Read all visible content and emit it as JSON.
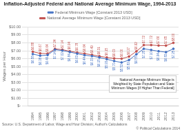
{
  "chart_data": {
    "type": "line",
    "title": "Inflation-Adjusted Federal and National Average Minimum Wage, 1994-2013",
    "ylabel": "Wages per Hour",
    "x": [
      1994,
      1995,
      1996,
      1997,
      1998,
      1999,
      2000,
      2001,
      2002,
      2003,
      2004,
      2005,
      2006,
      2007,
      2008,
      2009,
      2010,
      2011,
      2012,
      2013
    ],
    "xlim": [
      1993.3,
      2013.7
    ],
    "xticks": [
      1994,
      1995,
      1996,
      1997,
      1998,
      1999,
      2000,
      2001,
      2002,
      2003,
      2004,
      2005,
      2006,
      2007,
      2008,
      2009,
      2010,
      2011,
      2012,
      2013
    ],
    "ylim": [
      0,
      10
    ],
    "yticks": [
      {
        "value": 0,
        "label": "$-"
      },
      {
        "value": 1.0,
        "label": "$1.00"
      },
      {
        "value": 2.0,
        "label": "$2.00"
      },
      {
        "value": 3.0,
        "label": "$3.00"
      },
      {
        "value": 4.0,
        "label": "$4.00"
      },
      {
        "value": 5.0,
        "label": "$5.00"
      },
      {
        "value": 6.0,
        "label": "$6.00"
      },
      {
        "value": 7.0,
        "label": "$7.00"
      },
      {
        "value": 8.0,
        "label": "$8.00"
      },
      {
        "value": 9.0,
        "label": "$9.00"
      },
      {
        "value": 10.0,
        "label": "$10.00"
      }
    ],
    "series": [
      {
        "name": "Federal Minimum Wage [Constant 2013 USD]",
        "color": "#4472C4",
        "marker": "circle",
        "values": [
          6.58,
          6.38,
          6.46,
          7.14,
          7.02,
          6.84,
          6.63,
          6.44,
          6.33,
          6.15,
          5.93,
          5.7,
          5.52,
          5.82,
          6.55,
          7.25,
          7.1,
          6.94,
          6.82,
          7.25
        ],
        "value_labels": [
          "$6.58",
          "$6.38",
          "$6.46",
          "$7.14",
          "$7.02",
          "$6.84",
          "$6.63",
          "$6.44",
          "$6.33",
          "$6.15",
          "$5.93",
          "$5.70",
          "$5.52",
          "$5.82",
          "$6.55",
          "$7.25",
          "$7.10",
          "$6.94",
          "$6.82",
          "$7.25"
        ]
      },
      {
        "name": "National Average Minimum Wage [Constant 2013 USD]",
        "color": "#C0504D",
        "marker": "circle",
        "values": [
          6.88,
          6.67,
          6.64,
          7.24,
          7.14,
          6.94,
          6.78,
          6.64,
          6.49,
          6.31,
          6.15,
          6.03,
          6.0,
          6.27,
          6.92,
          7.72,
          7.72,
          7.66,
          7.65,
          8.0
        ],
        "value_labels": [
          "$6.88",
          "$6.67",
          "$6.64",
          "$7.24",
          "$7.14",
          "$6.94",
          "$6.78",
          "$6.64",
          "$6.49",
          "$6.31",
          "$6.15",
          "$6.03",
          "$6.00",
          "$6.27",
          "$6.92",
          "$7.72",
          "$7.72",
          "$7.66",
          "$7.65",
          "$8.00"
        ]
      }
    ],
    "data_labels": true,
    "grid": true,
    "legend": "top",
    "annotation": "National Average Minimum Wage is\nWeighted by State Population and State\nMinimum Wages [If Higher Than Federal]",
    "source": "Source: U.S. Department of Labor, Wage and Hour Division; Author's Calculations",
    "copyright": "© Political Calculations 2014"
  }
}
